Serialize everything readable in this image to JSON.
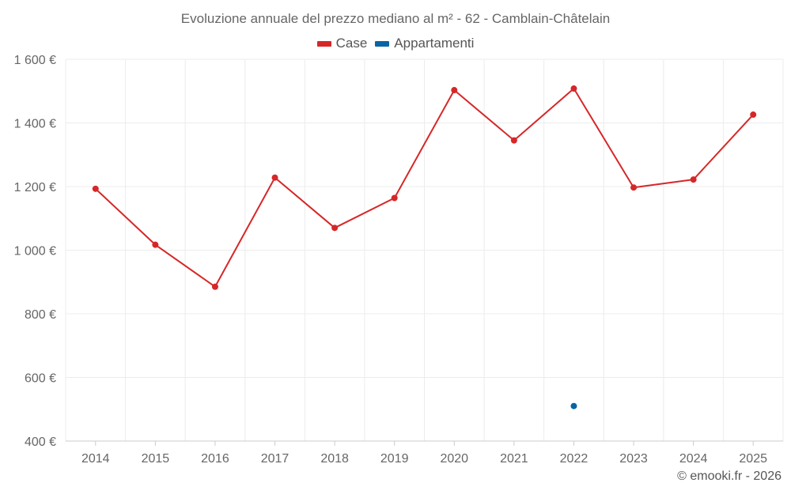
{
  "chart_data": {
    "type": "line",
    "title": "Evoluzione annuale del prezzo mediano al m² - 62 - Camblain-Châtelain",
    "categories": [
      "2014",
      "2015",
      "2016",
      "2017",
      "2018",
      "2019",
      "2020",
      "2021",
      "2022",
      "2023",
      "2024",
      "2025"
    ],
    "series": [
      {
        "name": "Case",
        "color": "#d62728",
        "values": [
          1193,
          1017,
          885,
          1228,
          1070,
          1164,
          1503,
          1345,
          1508,
          1197,
          1222,
          1426
        ]
      },
      {
        "name": "Appartamenti",
        "color": "#0a64a4",
        "values": [
          null,
          null,
          null,
          null,
          null,
          null,
          null,
          null,
          510,
          null,
          null,
          null
        ]
      }
    ],
    "yticks": [
      "400 €",
      "600 €",
      "800 €",
      "1 000 €",
      "1 200 €",
      "1 400 €",
      "1 600 €"
    ],
    "ytick_values": [
      400,
      600,
      800,
      1000,
      1200,
      1400,
      1600
    ],
    "ylim": [
      400,
      1600
    ],
    "xlabel": "",
    "ylabel": "",
    "grid": true,
    "legend_position": "top-center"
  },
  "credit": "© emooki.fr - 2026"
}
